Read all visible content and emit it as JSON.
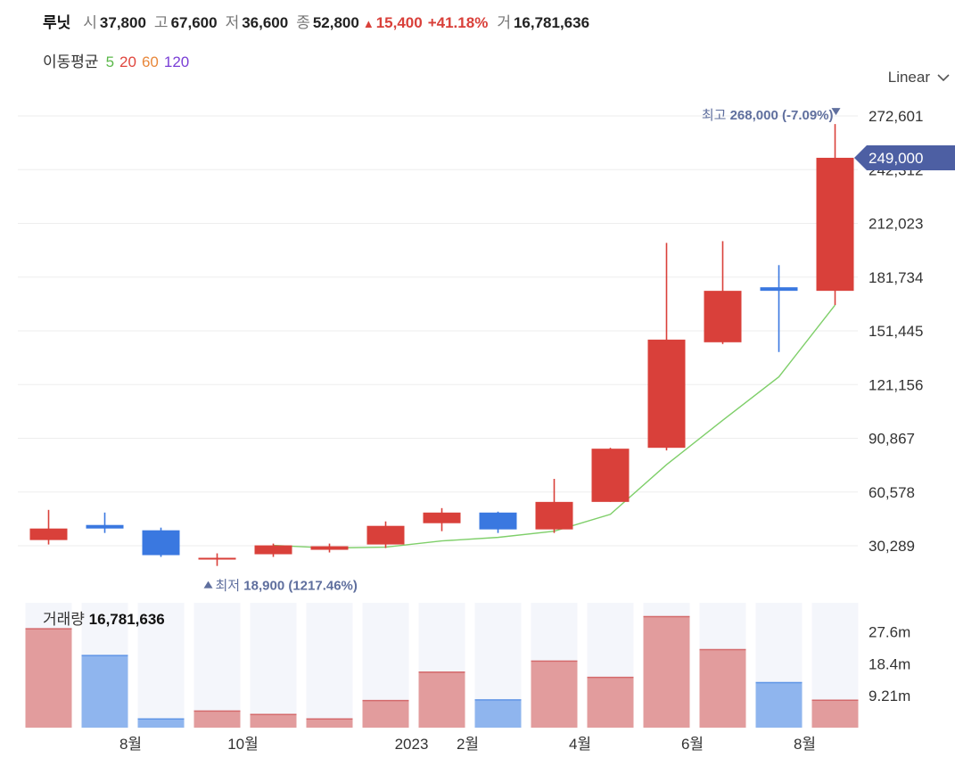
{
  "header": {
    "name": "루닛",
    "open_label": "시",
    "open": "37,800",
    "high_label": "고",
    "high": "67,600",
    "low_label": "저",
    "low": "36,600",
    "close_label": "종",
    "close": "52,800",
    "change_icon": "triangle-up-icon",
    "change": "15,400",
    "change_pct": "+41.18%",
    "volume_label": "거",
    "volume": "16,781,636",
    "up_color": "#d9403a"
  },
  "moving_average": {
    "title": "이동평균",
    "periods": [
      {
        "label": "5",
        "color": "#5bb84a"
      },
      {
        "label": "20",
        "color": "#e0453d"
      },
      {
        "label": "60",
        "color": "#e8873a"
      },
      {
        "label": "120",
        "color": "#7a3fd6"
      }
    ]
  },
  "scale_toggle": {
    "label": "Linear",
    "icon": "chevron-down-icon"
  },
  "chart_data": {
    "type": "candlestick",
    "y_ticks": [
      "272,601",
      "242,312",
      "212,023",
      "181,734",
      "151,445",
      "121,156",
      "90,867",
      "60,578",
      "30,289"
    ],
    "y_tick_values": [
      272601,
      242312,
      212023,
      181734,
      151445,
      121156,
      90867,
      60578,
      30289
    ],
    "ylim": [
      15000,
      272601
    ],
    "x_ticks": [
      {
        "label": "8월",
        "index": 1
      },
      {
        "label": "10월",
        "index": 3
      },
      {
        "label": "2023",
        "index": 6
      },
      {
        "label": "2월",
        "index": 7
      },
      {
        "label": "4월",
        "index": 9
      },
      {
        "label": "6월",
        "index": 11
      },
      {
        "label": "8월",
        "index": 13
      }
    ],
    "candles": [
      {
        "open": 33500,
        "high": 50500,
        "low": 31000,
        "close": 40000
      },
      {
        "open": 42000,
        "high": 49000,
        "low": 37500,
        "close": 40000
      },
      {
        "open": 39000,
        "high": 40500,
        "low": 24000,
        "close": 25000
      },
      {
        "open": 23500,
        "high": 26000,
        "low": 18900,
        "close": 23500
      },
      {
        "open": 25500,
        "high": 31500,
        "low": 24000,
        "close": 30500
      },
      {
        "open": 28000,
        "high": 31500,
        "low": 26500,
        "close": 30000
      },
      {
        "open": 31000,
        "high": 44000,
        "low": 29000,
        "close": 41500
      },
      {
        "open": 43000,
        "high": 51500,
        "low": 38500,
        "close": 49000
      },
      {
        "open": 49000,
        "high": 49500,
        "low": 37500,
        "close": 39500
      },
      {
        "open": 39500,
        "high": 68000,
        "low": 37500,
        "close": 55000
      },
      {
        "open": 55000,
        "high": 85500,
        "low": 55000,
        "close": 85000
      },
      {
        "open": 85500,
        "high": 201000,
        "low": 84000,
        "close": 146500
      },
      {
        "open": 145000,
        "high": 202000,
        "low": 144000,
        "close": 174000
      },
      {
        "open": 176000,
        "high": 188500,
        "low": 139500,
        "close": 174000
      },
      {
        "open": 174000,
        "high": 268000,
        "low": 166000,
        "close": 249000
      }
    ],
    "ma5": {
      "label": "5",
      "start_index": 4,
      "values": [
        30500,
        29000,
        29500,
        33000,
        35000,
        38500,
        48000,
        76000,
        101000,
        125500,
        166000
      ]
    },
    "current_price": "249,000",
    "current_price_value": 249000,
    "max_label": "최고",
    "max_value": "268,000",
    "max_pct": "(-7.09%)",
    "max_index": 14,
    "min_label": "최저",
    "min_value": "18,900",
    "min_pct": "(1217.46%)",
    "min_index": 3,
    "volume": {
      "label": "거래량",
      "value": "16,781,636",
      "y_ticks": [
        "27.6m",
        "18.4m",
        "9.21m"
      ],
      "y_tick_values": [
        27600000,
        18400000,
        9210000
      ],
      "max": 36000000,
      "values": [
        28500000,
        20800000,
        2500000,
        4800000,
        3800000,
        2500000,
        7800000,
        16000000,
        8000000,
        19200000,
        14500000,
        32000000,
        22500000,
        13000000,
        7900000
      ]
    },
    "colors": {
      "up": "#d9403a",
      "down": "#3a78e0",
      "ma5": "#7fcf6a",
      "current_tag": "#4d5fa3",
      "vol_up": "#e29c9d",
      "vol_down": "#8fb5ee",
      "vol_bg": "#f4f6fb"
    }
  }
}
